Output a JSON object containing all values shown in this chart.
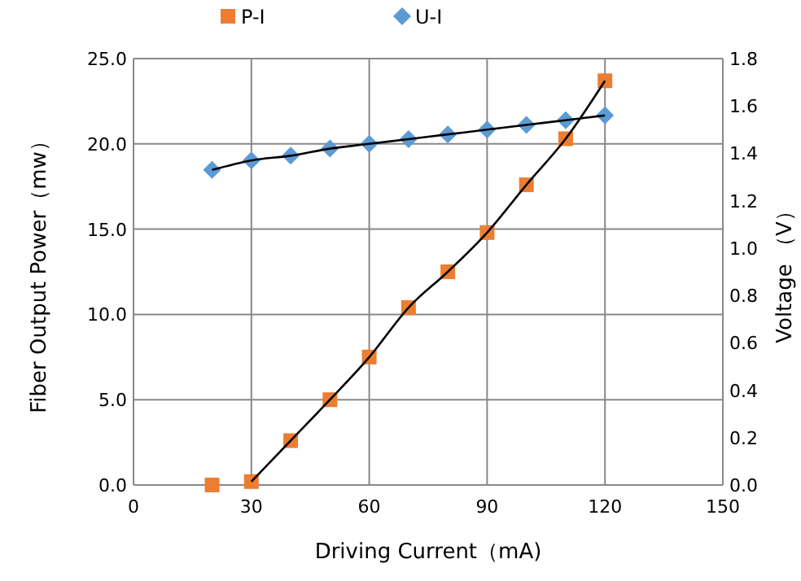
{
  "chart_data": {
    "type": "scatter",
    "xlabel": "Driving Current（mA)",
    "ylabel": "Fiber Output Power（mw）",
    "y2label": "Voltage （V）",
    "x": [
      20,
      30,
      40,
      50,
      60,
      70,
      80,
      90,
      100,
      110,
      120
    ],
    "series": [
      {
        "name": "P-I",
        "color": "#ed7d31",
        "marker": "square",
        "values": [
          0,
          0.2,
          2.6,
          5.0,
          7.5,
          10.4,
          12.5,
          14.8,
          17.6,
          20.3,
          23.7
        ]
      },
      {
        "name": "U-I",
        "color": "#5b9bd5",
        "marker": "diamond",
        "axis": "y2",
        "values": [
          1.33,
          1.37,
          1.39,
          1.42,
          1.44,
          1.46,
          1.48,
          1.5,
          1.52,
          1.54,
          1.56
        ]
      },
      {
        "type": "line",
        "color": "#000000",
        "marker": "none",
        "x": [
          30,
          40,
          50,
          60,
          70,
          80,
          90,
          100,
          110,
          120
        ],
        "values": [
          0.2,
          2.6,
          5.0,
          7.5,
          10.4,
          12.5,
          14.8,
          17.6,
          20.3,
          23.7
        ]
      },
      {
        "type": "line",
        "color": "#000000",
        "marker": "none",
        "axis": "y2",
        "values": [
          1.33,
          1.37,
          1.39,
          1.42,
          1.44,
          1.46,
          1.48,
          1.5,
          1.52,
          1.54,
          1.56
        ]
      }
    ],
    "xlim": [
      0,
      150
    ],
    "xticks": [
      0,
      30,
      60,
      90,
      120,
      150
    ],
    "ylim": [
      0,
      25
    ],
    "yticks": [
      {
        "value": 0,
        "label": "0.0"
      },
      {
        "value": 5,
        "label": "5.0"
      },
      {
        "value": 10,
        "label": "10.0"
      },
      {
        "value": 15,
        "label": "15.0"
      },
      {
        "value": 20,
        "label": "20.0"
      },
      {
        "value": 25,
        "label": "25.0"
      }
    ],
    "y2lim": [
      0,
      1.8
    ],
    "y2ticks": [
      {
        "value": 0,
        "label": "0.0"
      },
      {
        "value": 0.2,
        "label": "0.2"
      },
      {
        "value": 0.4,
        "label": "0.4"
      },
      {
        "value": 0.6,
        "label": "0.6"
      },
      {
        "value": 0.8,
        "label": "0.8"
      },
      {
        "value": 1,
        "label": "1.0"
      },
      {
        "value": 1.2,
        "label": "1.2"
      },
      {
        "value": 1.4,
        "label": "1.4"
      },
      {
        "value": 1.6,
        "label": "1.6"
      },
      {
        "value": 1.8,
        "label": "1.8"
      }
    ],
    "grid": true,
    "legend": "top",
    "line_style": "solid"
  }
}
